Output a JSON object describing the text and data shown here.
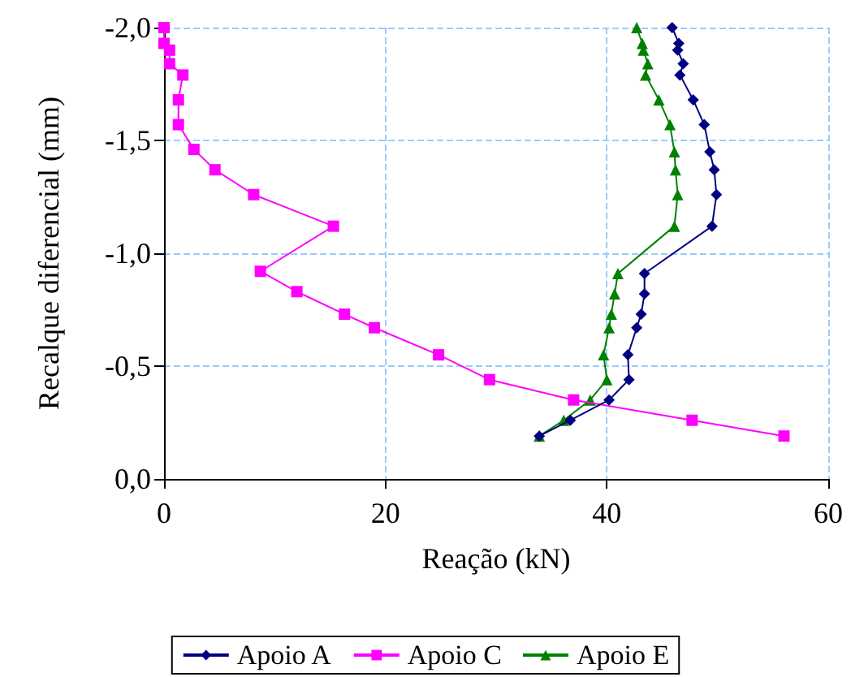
{
  "chart_data": {
    "type": "line",
    "xlabel": "Reação (kN)",
    "ylabel": "Recalque diferencial (mm)",
    "xlim": [
      0,
      60
    ],
    "xticks": [
      0,
      20,
      40,
      60
    ],
    "ylim": [
      0,
      -2
    ],
    "yticks": [
      {
        "value": 0,
        "label": "0,0"
      },
      {
        "value": -0.5,
        "label": "-0,5"
      },
      {
        "value": -1,
        "label": "-1,0"
      },
      {
        "value": -1.5,
        "label": "-1,5"
      },
      {
        "value": -2,
        "label": "-2,0"
      }
    ],
    "grid": true,
    "legend": "bottom",
    "line_style": "solid",
    "series": [
      {
        "name": "Apoio A",
        "color": "#000080",
        "marker": "diamond",
        "x": [
          45.9,
          46.5,
          46.4,
          46.9,
          46.6,
          47.8,
          48.8,
          49.3,
          49.7,
          49.9,
          49.5,
          43.4,
          43.4,
          43.1,
          42.7,
          41.9,
          42.0,
          40.2,
          36.7,
          33.9
        ],
        "values": [
          -2.0,
          -1.93,
          -1.9,
          -1.84,
          -1.79,
          -1.68,
          -1.57,
          -1.45,
          -1.37,
          -1.26,
          -1.12,
          -0.91,
          -0.82,
          -0.73,
          -0.67,
          -0.55,
          -0.44,
          -0.35,
          -0.26,
          -0.19
        ]
      },
      {
        "name": "Apoio C",
        "color": "#ff00ff",
        "marker": "square",
        "x": [
          0.0,
          0.0,
          0.5,
          0.5,
          1.7,
          1.3,
          1.3,
          2.7,
          4.6,
          8.1,
          15.3,
          8.7,
          12.0,
          16.3,
          19.0,
          24.8,
          29.4,
          37.0,
          47.7,
          56.0
        ],
        "values": [
          -2.0,
          -1.93,
          -1.9,
          -1.84,
          -1.79,
          -1.68,
          -1.57,
          -1.46,
          -1.37,
          -1.26,
          -1.12,
          -0.92,
          -0.83,
          -0.73,
          -0.67,
          -0.55,
          -0.44,
          -0.35,
          -0.26,
          -0.19
        ]
      },
      {
        "name": "Apoio E",
        "color": "#008000",
        "marker": "triangle",
        "x": [
          42.7,
          43.2,
          43.3,
          43.7,
          43.5,
          44.7,
          45.7,
          46.1,
          46.2,
          46.4,
          46.1,
          41.0,
          40.7,
          40.4,
          40.2,
          39.7,
          40.0,
          38.5,
          36.1,
          33.9
        ],
        "values": [
          -2.0,
          -1.93,
          -1.9,
          -1.84,
          -1.79,
          -1.68,
          -1.57,
          -1.45,
          -1.37,
          -1.26,
          -1.12,
          -0.91,
          -0.82,
          -0.73,
          -0.67,
          -0.55,
          -0.44,
          -0.35,
          -0.26,
          -0.19
        ]
      }
    ]
  }
}
